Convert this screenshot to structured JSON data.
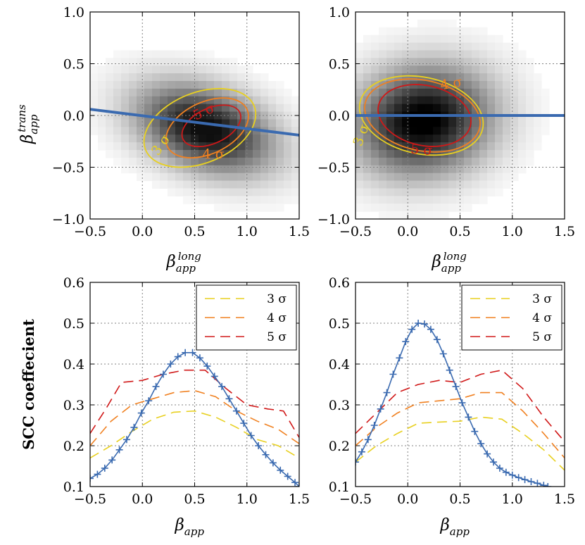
{
  "chart_data": [
    {
      "type": "heatmap",
      "panel": "top-left",
      "xlabel": "β_app^long",
      "ylabel": "β_app^trans",
      "xlim": [
        -0.5,
        1.5
      ],
      "ylim": [
        -1.0,
        1.0
      ],
      "xticks": [
        "−0.5",
        "0.0",
        "0.5",
        "1.0",
        "1.5"
      ],
      "yticks": [
        "1.0",
        "0.5",
        "0.0",
        "−0.5",
        "−1.0"
      ],
      "grid": true,
      "density": {
        "center": [
          0.6,
          -0.13
        ],
        "sigma": [
          0.45,
          0.3
        ],
        "rho": -0.35,
        "peak_gray": 15
      },
      "fit_line": {
        "color": "#3a6ab0",
        "points": [
          [
            -0.5,
            0.06
          ],
          [
            1.5,
            -0.19
          ]
        ]
      },
      "contours": [
        {
          "label": "3 σ",
          "color": "#e8d020",
          "center": [
            0.55,
            -0.12
          ],
          "rx": 0.56,
          "ry": 0.34,
          "rot": -22
        },
        {
          "label": "4 σ",
          "color": "#f08020",
          "center": [
            0.62,
            -0.12
          ],
          "rx": 0.42,
          "ry": 0.25,
          "rot": -25
        },
        {
          "label": "5 σ",
          "color": "#d01818",
          "center": [
            0.66,
            -0.1
          ],
          "rx": 0.3,
          "ry": 0.17,
          "rot": -25
        }
      ],
      "contour_labels": [
        {
          "text": "5 σ",
          "color": "#d01818",
          "x": 0.6,
          "y": 0.01,
          "rot": -25
        },
        {
          "text": "4 σ",
          "color": "#f08020",
          "x": 0.68,
          "y": -0.4,
          "rot": 0
        },
        {
          "text": "3 σ",
          "color": "#e8d020",
          "x": 0.2,
          "y": -0.3,
          "rot": -55
        }
      ]
    },
    {
      "type": "heatmap",
      "panel": "top-right",
      "xlabel": "β_app^long",
      "ylabel": "",
      "xlim": [
        -0.5,
        1.5
      ],
      "ylim": [
        -1.0,
        1.0
      ],
      "xticks": [
        "−0.5",
        "0.0",
        "0.5",
        "1.0",
        "1.5"
      ],
      "yticks": [
        "1.0",
        "0.5",
        "0.0",
        "−0.5",
        "−1.0"
      ],
      "grid": true,
      "density": {
        "center": [
          0.15,
          -0.05
        ],
        "sigma": [
          0.45,
          0.36
        ],
        "rho": 0.1,
        "peak_gray": 0
      },
      "fit_line": {
        "color": "#3a6ab0",
        "points": [
          [
            -0.5,
            0.0
          ],
          [
            1.5,
            0.0
          ]
        ]
      },
      "contours": [
        {
          "label": "3 σ",
          "color": "#e8d020",
          "center": [
            0.13,
            0.0
          ],
          "rx": 0.6,
          "ry": 0.37,
          "rot": 12
        },
        {
          "label": "4 σ",
          "color": "#f08020",
          "center": [
            0.14,
            0.0
          ],
          "rx": 0.56,
          "ry": 0.34,
          "rot": 12
        },
        {
          "label": "5 σ",
          "color": "#d01818",
          "center": [
            0.16,
            0.0
          ],
          "rx": 0.45,
          "ry": 0.29,
          "rot": 12
        }
      ],
      "contour_labels": [
        {
          "text": "5 σ",
          "color": "#d01818",
          "x": 0.13,
          "y": -0.36,
          "rot": 5
        },
        {
          "text": "4 σ",
          "color": "#f08020",
          "x": 0.42,
          "y": 0.28,
          "rot": -10
        },
        {
          "text": "3 σ",
          "color": "#e8d020",
          "x": -0.42,
          "y": -0.2,
          "rot": -70
        }
      ]
    },
    {
      "type": "line",
      "panel": "bottom-left",
      "xlabel": "β_app",
      "ylabel": "SCC coeffecient",
      "xlim": [
        -0.5,
        1.5
      ],
      "ylim": [
        0.1,
        0.6
      ],
      "xticks": [
        "−0.5",
        "0.0",
        "0.5",
        "1.0",
        "1.5"
      ],
      "yticks": [
        "0.6",
        "0.5",
        "0.4",
        "0.3",
        "0.2",
        "0.1"
      ],
      "grid": true,
      "legend": "top-right",
      "main_series": {
        "color": "#3a6ab0",
        "x": [
          -0.5,
          -0.43,
          -0.36,
          -0.29,
          -0.22,
          -0.15,
          -0.08,
          -0.01,
          0.06,
          0.13,
          0.2,
          0.27,
          0.34,
          0.41,
          0.48,
          0.55,
          0.62,
          0.69,
          0.76,
          0.83,
          0.9,
          0.97,
          1.04,
          1.11,
          1.18,
          1.25,
          1.32,
          1.39,
          1.46,
          1.5
        ],
        "y": [
          0.12,
          0.13,
          0.145,
          0.165,
          0.19,
          0.215,
          0.245,
          0.28,
          0.31,
          0.345,
          0.375,
          0.4,
          0.418,
          0.428,
          0.428,
          0.415,
          0.395,
          0.37,
          0.345,
          0.315,
          0.285,
          0.255,
          0.225,
          0.2,
          0.178,
          0.158,
          0.14,
          0.125,
          0.11,
          0.1
        ]
      },
      "series": [
        {
          "name": "3 σ",
          "color": "#e8d020",
          "x": [
            -0.5,
            -0.3,
            -0.1,
            0.1,
            0.3,
            0.5,
            0.7,
            0.9,
            1.1,
            1.3,
            1.5
          ],
          "y": [
            0.17,
            0.2,
            0.235,
            0.265,
            0.282,
            0.285,
            0.27,
            0.245,
            0.215,
            0.2,
            0.17
          ]
        },
        {
          "name": "4 σ",
          "color": "#f08020",
          "x": [
            -0.5,
            -0.3,
            -0.1,
            0.1,
            0.3,
            0.5,
            0.7,
            0.9,
            1.1,
            1.3,
            1.5
          ],
          "y": [
            0.2,
            0.26,
            0.3,
            0.315,
            0.33,
            0.335,
            0.32,
            0.285,
            0.26,
            0.24,
            0.205
          ]
        },
        {
          "name": "5 σ",
          "color": "#d01818",
          "x": [
            -0.5,
            -0.35,
            -0.2,
            0.0,
            0.2,
            0.4,
            0.6,
            0.8,
            1.0,
            1.2,
            1.35,
            1.5
          ],
          "y": [
            0.23,
            0.29,
            0.355,
            0.36,
            0.375,
            0.385,
            0.385,
            0.34,
            0.3,
            0.29,
            0.285,
            0.22
          ]
        }
      ]
    },
    {
      "type": "line",
      "panel": "bottom-right",
      "xlabel": "β_app",
      "ylabel": "",
      "xlim": [
        -0.5,
        1.5
      ],
      "ylim": [
        0.1,
        0.6
      ],
      "xticks": [
        "−0.5",
        "0.0",
        "0.5",
        "1.0",
        "1.5"
      ],
      "yticks": [
        "0.6",
        "0.5",
        "0.4",
        "0.3",
        "0.2",
        "0.1"
      ],
      "grid": true,
      "legend": "top-right",
      "main_series": {
        "color": "#3a6ab0",
        "x": [
          -0.5,
          -0.44,
          -0.38,
          -0.32,
          -0.26,
          -0.2,
          -0.14,
          -0.08,
          -0.02,
          0.04,
          0.1,
          0.16,
          0.22,
          0.28,
          0.34,
          0.4,
          0.46,
          0.52,
          0.58,
          0.64,
          0.7,
          0.76,
          0.82,
          0.88,
          0.94,
          1.0,
          1.06,
          1.12,
          1.18,
          1.24,
          1.3,
          1.34
        ],
        "y": [
          0.16,
          0.185,
          0.215,
          0.25,
          0.29,
          0.33,
          0.375,
          0.415,
          0.455,
          0.485,
          0.5,
          0.498,
          0.485,
          0.46,
          0.425,
          0.385,
          0.345,
          0.305,
          0.27,
          0.235,
          0.205,
          0.18,
          0.16,
          0.145,
          0.135,
          0.128,
          0.122,
          0.117,
          0.112,
          0.108,
          0.103,
          0.1
        ]
      },
      "series": [
        {
          "name": "3 σ",
          "color": "#e8d020",
          "x": [
            -0.5,
            -0.3,
            -0.1,
            0.1,
            0.3,
            0.5,
            0.7,
            0.9,
            1.1,
            1.3,
            1.5
          ],
          "y": [
            0.16,
            0.2,
            0.23,
            0.255,
            0.258,
            0.26,
            0.27,
            0.265,
            0.23,
            0.19,
            0.14
          ]
        },
        {
          "name": "4 σ",
          "color": "#f08020",
          "x": [
            -0.5,
            -0.3,
            -0.1,
            0.1,
            0.3,
            0.5,
            0.7,
            0.9,
            1.1,
            1.3,
            1.5
          ],
          "y": [
            0.2,
            0.245,
            0.28,
            0.305,
            0.31,
            0.315,
            0.33,
            0.33,
            0.285,
            0.23,
            0.17
          ]
        },
        {
          "name": "5 σ",
          "color": "#d01818",
          "x": [
            -0.5,
            -0.3,
            -0.1,
            0.1,
            0.3,
            0.5,
            0.7,
            0.9,
            1.1,
            1.3,
            1.5
          ],
          "y": [
            0.23,
            0.28,
            0.33,
            0.35,
            0.36,
            0.355,
            0.375,
            0.385,
            0.34,
            0.27,
            0.21
          ]
        }
      ]
    }
  ]
}
